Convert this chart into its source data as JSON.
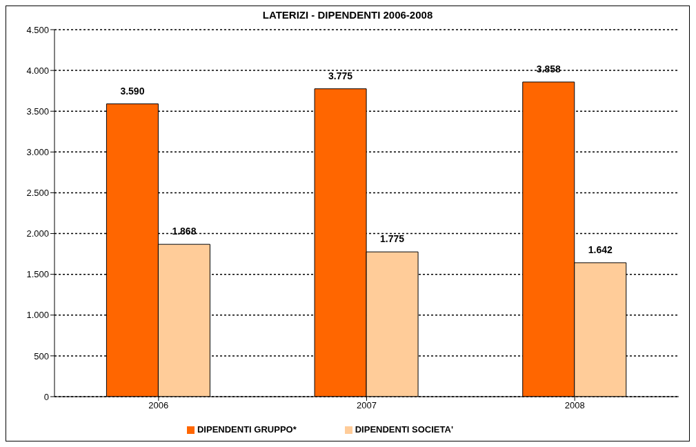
{
  "chart_data": {
    "type": "bar",
    "title": "LATERIZI -  DIPENDENTI 2006-2008",
    "categories": [
      "2006",
      "2007",
      "2008"
    ],
    "series": [
      {
        "name": "DIPENDENTI GRUPPO*",
        "color": "#ff6600",
        "values": [
          3590,
          3775,
          3858
        ],
        "value_labels": [
          "3.590",
          "3.775",
          "3.858"
        ]
      },
      {
        "name": "DIPENDENTI SOCIETA'",
        "color": "#ffcc99",
        "values": [
          1868,
          1775,
          1642
        ],
        "value_labels": [
          "1.868",
          "1.775",
          "1.642"
        ]
      }
    ],
    "ylim": [
      0,
      4500
    ],
    "yticks": [
      0,
      {
        "value": 500,
        "label": "500"
      },
      {
        "value": 1000,
        "label": "1.000"
      },
      {
        "value": 1500,
        "label": "1.500"
      },
      {
        "value": 2000,
        "label": "2.000"
      },
      {
        "value": 2500,
        "label": "2.500"
      },
      {
        "value": 3000,
        "label": "3.000"
      },
      {
        "value": 3500,
        "label": "3.500"
      },
      {
        "value": 4000,
        "label": "4.000"
      },
      {
        "value": 4500,
        "label": "4.500"
      }
    ],
    "grid": "y",
    "legend": "bottom"
  }
}
